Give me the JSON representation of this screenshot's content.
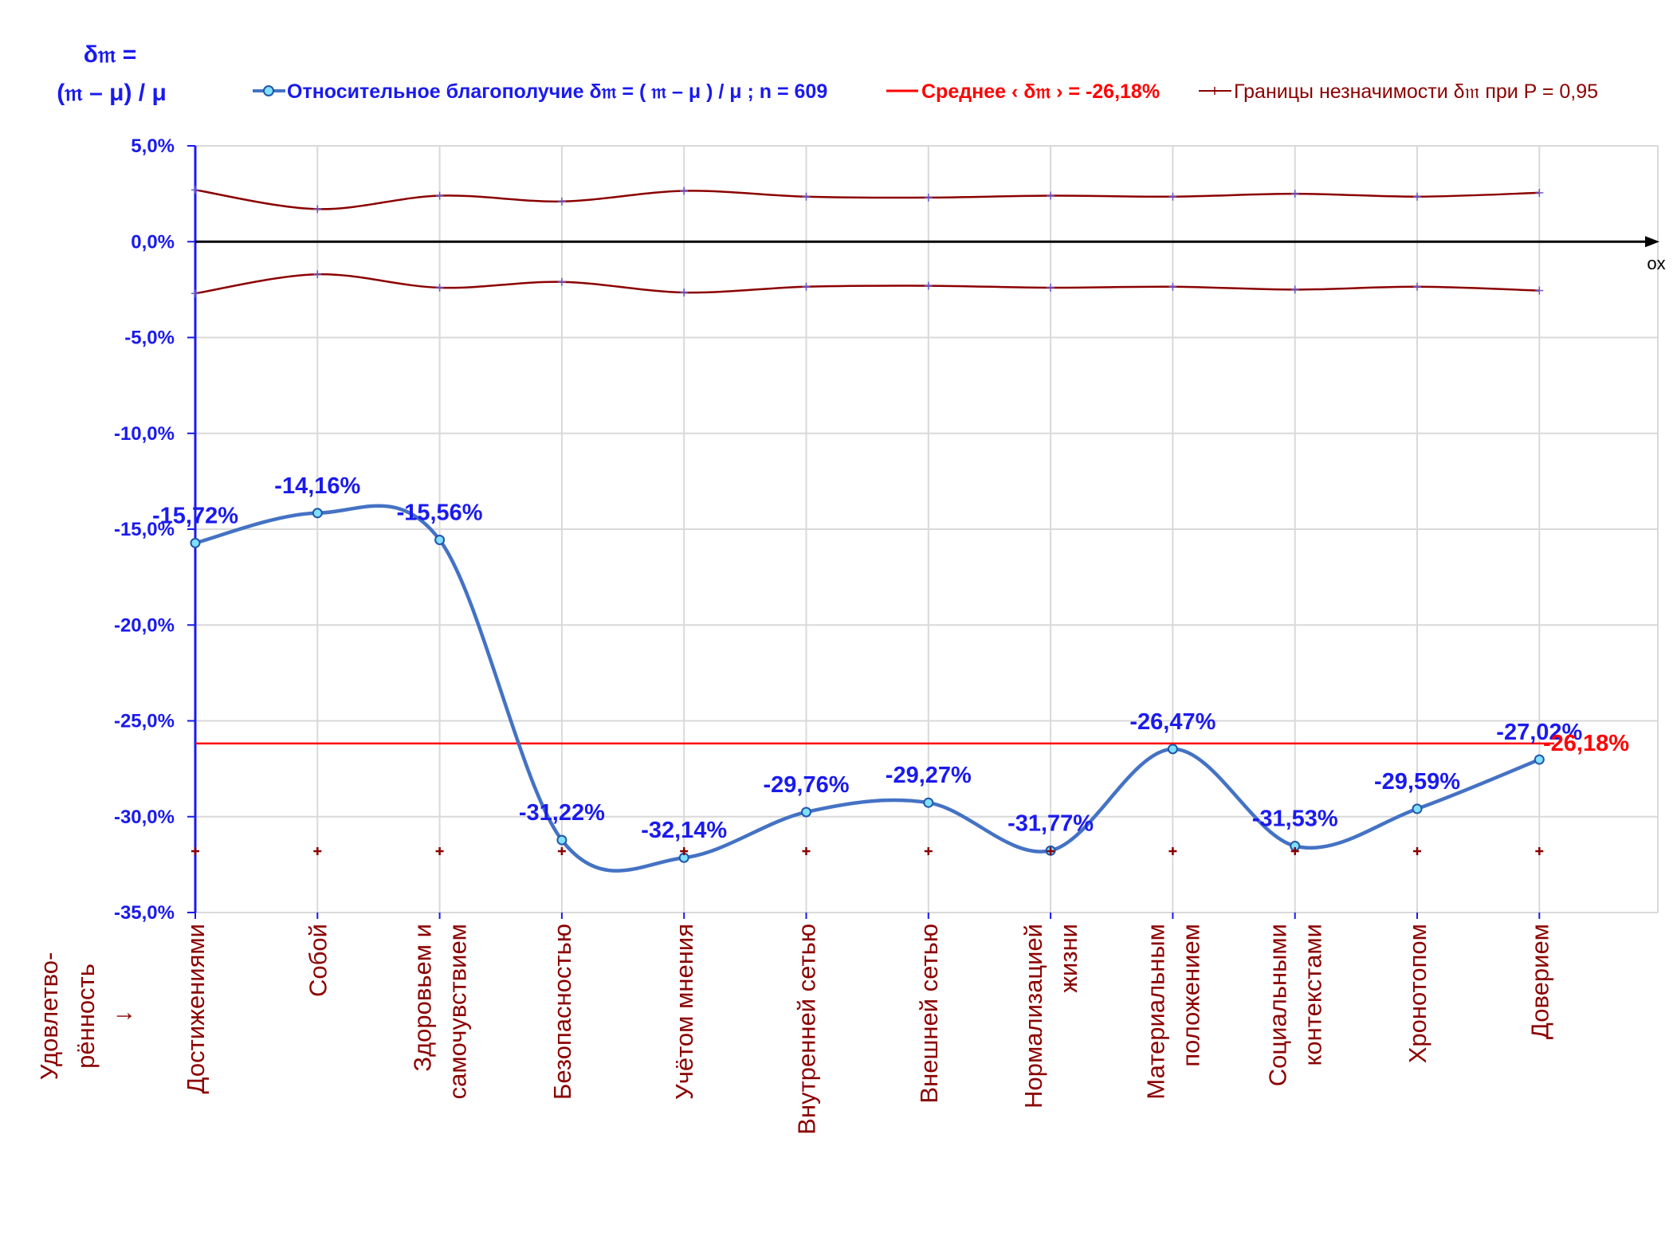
{
  "chart_data": {
    "type": "line",
    "y_axis_title": [
      "δ𝔪 =",
      "(𝔪 – μ) / μ"
    ],
    "x_axis_title": [
      "Удовлетво-",
      "рённость",
      "↓"
    ],
    "x_axis_end_label": "ox",
    "ylim": [
      -35,
      5
    ],
    "y_ticks": [
      5,
      0,
      -5,
      -10,
      -15,
      -20,
      -25,
      -30,
      -35
    ],
    "y_tick_labels": [
      "5,0%",
      "0,0%",
      "-5,0%",
      "-10,0%",
      "-15,0%",
      "-20,0%",
      "-25,0%",
      "-30,0%",
      "-35,0%"
    ],
    "grid": true,
    "legend_position": "top",
    "categories": [
      [
        "Достижениями"
      ],
      [
        "Собой"
      ],
      [
        "Здоровьем и",
        "самочувствием"
      ],
      [
        "Безопасностью"
      ],
      [
        "Учётом мнения"
      ],
      [
        "Внутренней сетью"
      ],
      [
        "Внешней сетью"
      ],
      [
        "Нормализацией",
        "жизни"
      ],
      [
        "Материальным",
        "положением"
      ],
      [
        "Социальными",
        "контекстами"
      ],
      [
        "Хронотопом"
      ],
      [
        "Доверием"
      ]
    ],
    "series": [
      {
        "name": "Относительное благополучие δ𝔪 = ( 𝔪 – μ ) / μ ; n = 609",
        "color": "#4472c4",
        "values": [
          -15.72,
          -14.16,
          -15.56,
          -31.22,
          -32.14,
          -29.76,
          -29.27,
          -31.77,
          -26.47,
          -31.53,
          -29.59,
          -27.02
        ],
        "labels": [
          "-15,72%",
          "-14,16%",
          "-15,56%",
          "-31,22%",
          "-32,14%",
          "-29,76%",
          "-29,27%",
          "-31,77%",
          "-26,47%",
          "-31,53%",
          "-29,59%",
          "-27,02%"
        ]
      },
      {
        "name": "Среднее ‹ δ𝔪 › = -26,18%",
        "color": "#ff0000",
        "value": -26.18,
        "label": "-26,18%"
      },
      {
        "name": "Границы незначимости δ𝔪 при P = 0,95",
        "color": "#8b0000",
        "upper": [
          2.7,
          1.7,
          2.4,
          2.1,
          2.65,
          2.35,
          2.3,
          2.4,
          2.35,
          2.5,
          2.35,
          2.55
        ],
        "lower": [
          -2.7,
          -1.7,
          -2.4,
          -2.1,
          -2.65,
          -2.35,
          -2.3,
          -2.4,
          -2.35,
          -2.5,
          -2.35,
          -2.55
        ]
      }
    ],
    "baseline_markers_y": -31.8
  }
}
